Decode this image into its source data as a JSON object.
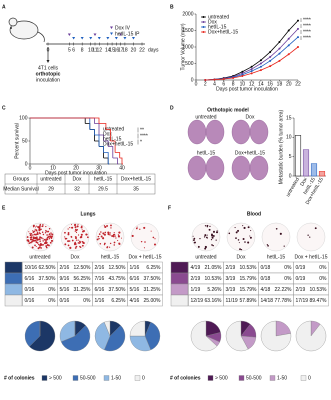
{
  "panel_labels": [
    "A",
    "B",
    "C",
    "D",
    "E",
    "F"
  ],
  "schedule": {
    "ticks": [
      0,
      5,
      6,
      8,
      10,
      11,
      12,
      14,
      15,
      16,
      17,
      18,
      20,
      22
    ],
    "xlim": [
      0,
      22
    ],
    "unit": "days",
    "treatments": [
      {
        "name": "Dox IV",
        "color": "#6a3d9a",
        "days": [
          5,
          11,
          17
        ]
      },
      {
        "name": "hetIL-15 IP",
        "color": "#1f5fbf",
        "days": [
          6,
          8,
          10,
          12,
          14,
          16,
          18,
          20
        ]
      }
    ],
    "inoculation": [
      "4T1 cells",
      "orthotopic",
      "inoculation"
    ]
  },
  "orthotopic": {
    "title": "Orthotopic model",
    "labels": [
      "untreated",
      "Dox",
      "hetIL-15",
      "Dox+hetIL-15"
    ]
  },
  "survival_table": {
    "header": [
      "Groups",
      "untreated",
      "Dox",
      "hetIL-15",
      "Dox+hetIL-15"
    ],
    "row_label": "Median Survival",
    "values": [
      29,
      32,
      29.5,
      35
    ]
  },
  "chart_data": [
    {
      "type": "line",
      "xlabel": "Days post tumor inoculation",
      "ylabel": "Tumor Volume (mm³)",
      "x": [
        2,
        4,
        6,
        8,
        10,
        12,
        14,
        16,
        18,
        20,
        22
      ],
      "xlim": [
        0,
        22
      ],
      "xticks": [
        0,
        2,
        4,
        6,
        8,
        10,
        12,
        14,
        16,
        18,
        20,
        22
      ],
      "ylim": [
        0,
        2000
      ],
      "yticks": [
        0,
        500,
        1000,
        1500,
        2000
      ],
      "legend": "upper left",
      "series": [
        {
          "name": "untreated",
          "color": "#000000",
          "values": [
            0,
            20,
            60,
            120,
            250,
            400,
            600,
            850,
            1150,
            1500,
            1800
          ]
        },
        {
          "name": "Dox",
          "color": "#6a3d9a",
          "values": [
            0,
            20,
            50,
            100,
            200,
            330,
            500,
            700,
            950,
            1250,
            1550
          ]
        },
        {
          "name": "hetIL-15",
          "color": "#1f5fbf",
          "values": [
            0,
            15,
            40,
            80,
            160,
            270,
            400,
            580,
            800,
            1050,
            1300
          ]
        },
        {
          "name": "Dox+hetIL-15",
          "color": "#e8251c",
          "values": [
            0,
            10,
            30,
            60,
            120,
            200,
            300,
            420,
            580,
            780,
            1000
          ]
        }
      ],
      "annotations": [
        "****",
        "****",
        "****",
        "****"
      ]
    },
    {
      "type": "step",
      "xlabel": "Days post tumor inoculation",
      "ylabel": "Percent survival",
      "xlim": [
        0,
        40
      ],
      "xticks": [
        0,
        10,
        20,
        30,
        40
      ],
      "ylim": [
        0,
        100
      ],
      "yticks": [
        0,
        50,
        100
      ],
      "legend": "right",
      "series": [
        {
          "name": "untreated",
          "color": "#000000",
          "x": [
            0,
            22,
            24,
            26,
            28,
            30,
            32,
            34
          ],
          "values": [
            100,
            100,
            88,
            75,
            50,
            38,
            13,
            0
          ]
        },
        {
          "name": "Dox",
          "color": "#6a3d9a",
          "x": [
            0,
            26,
            28,
            30,
            32,
            34,
            36,
            38
          ],
          "values": [
            100,
            100,
            88,
            63,
            50,
            38,
            13,
            0
          ]
        },
        {
          "name": "hetIL-15",
          "color": "#1f5fbf",
          "x": [
            0,
            24,
            26,
            28,
            30,
            32,
            34
          ],
          "values": [
            100,
            100,
            75,
            63,
            38,
            25,
            0
          ]
        },
        {
          "name": "Dox+hetIL-15",
          "color": "#e8251c",
          "x": [
            0,
            30,
            33,
            35,
            37,
            39,
            40
          ],
          "values": [
            100,
            88,
            75,
            50,
            25,
            13,
            0
          ]
        }
      ],
      "annotations": [
        "**",
        "****",
        "*"
      ]
    },
    {
      "type": "bar",
      "ylabel": "Metastatic burden (% tumor area)",
      "categories": [
        "untreated",
        "Dox",
        "hetIL-15",
        "Dox+hetIL-15"
      ],
      "values": [
        10.5,
        6.8,
        3.2,
        1.2
      ],
      "colors": [
        "#ffffff",
        "#c9b3dd",
        "#9dbbe8",
        "#f3a49f"
      ],
      "edge_colors": [
        "#000000",
        "#6a3d9a",
        "#1f5fbf",
        "#e8251c"
      ],
      "ylim": [
        0,
        15
      ],
      "yticks": [
        0,
        5,
        10,
        15
      ]
    },
    {
      "type": "pie",
      "title": "Lungs",
      "legend_title": "# of colonies",
      "categories": [
        "> 500",
        "50-500",
        "1-50",
        "0"
      ],
      "colors": [
        "#1c3766",
        "#3d6eb4",
        "#8fb8e3",
        "#f0f0f0"
      ],
      "series": [
        {
          "name": "untreated",
          "values": [
            62.5,
            37.5,
            0,
            0
          ],
          "value_labels": [
            "62.50%",
            "37.50%",
            "0%",
            "0%"
          ],
          "counts": [
            "10/16",
            "6/16",
            "0/16",
            "0/16"
          ]
        },
        {
          "name": "Dox",
          "values": [
            12.5,
            56.25,
            31.25,
            0
          ],
          "value_labels": [
            "12.50%",
            "56.25%",
            "31.25%",
            "0%"
          ],
          "counts": [
            "2/16",
            "9/16",
            "5/16",
            "0/16"
          ]
        },
        {
          "name": "hetIL-15",
          "values": [
            12.5,
            43.75,
            37.5,
            6.25
          ],
          "value_labels": [
            "12.50%",
            "43.75%",
            "37.50%",
            "6.25%"
          ],
          "counts": [
            "2/16",
            "7/16",
            "6/16",
            "1/16"
          ]
        },
        {
          "name": "Dox + hetIL-15",
          "values": [
            6.25,
            37.5,
            31.25,
            25
          ],
          "value_labels": [
            "6.25%",
            "37.50%",
            "31.25%",
            "25.00%"
          ],
          "counts": [
            "1/16",
            "6/16",
            "5/16",
            "4/16"
          ]
        }
      ]
    },
    {
      "type": "pie",
      "title": "Blood",
      "legend_title": "# of colonies",
      "categories": [
        "> 500",
        "50-500",
        "1-50",
        "0"
      ],
      "colors": [
        "#4f1a55",
        "#8a4a90",
        "#c39ac7",
        "#f0f0f0"
      ],
      "series": [
        {
          "name": "untreated",
          "values": [
            21.05,
            10.53,
            5.26,
            63.16
          ],
          "value_labels": [
            "21.05%",
            "10.53%",
            "5.26%",
            "63.16%"
          ],
          "counts": [
            "4/19",
            "2/19",
            "1/19",
            "12/19"
          ]
        },
        {
          "name": "Dox",
          "values": [
            10.53,
            15.79,
            15.79,
            57.89
          ],
          "value_labels": [
            "10.53%",
            "15.79%",
            "15.79%",
            "57.89%"
          ],
          "counts": [
            "2/19",
            "3/19",
            "3/19",
            "11/19"
          ]
        },
        {
          "name": "hetIL-15",
          "values": [
            0,
            0,
            22.22,
            77.78
          ],
          "value_labels": [
            "0%",
            "0%",
            "22.22%",
            "77.78%"
          ],
          "counts": [
            "0/18",
            "0/18",
            "4/18",
            "14/18"
          ]
        },
        {
          "name": "Dox + hetIL-15",
          "values": [
            0,
            0,
            10.53,
            89.47
          ],
          "value_labels": [
            "0%",
            "0%",
            "10.53%",
            "89.47%"
          ],
          "counts": [
            "0/19",
            "0/19",
            "2/19",
            "17/19"
          ]
        }
      ]
    }
  ]
}
